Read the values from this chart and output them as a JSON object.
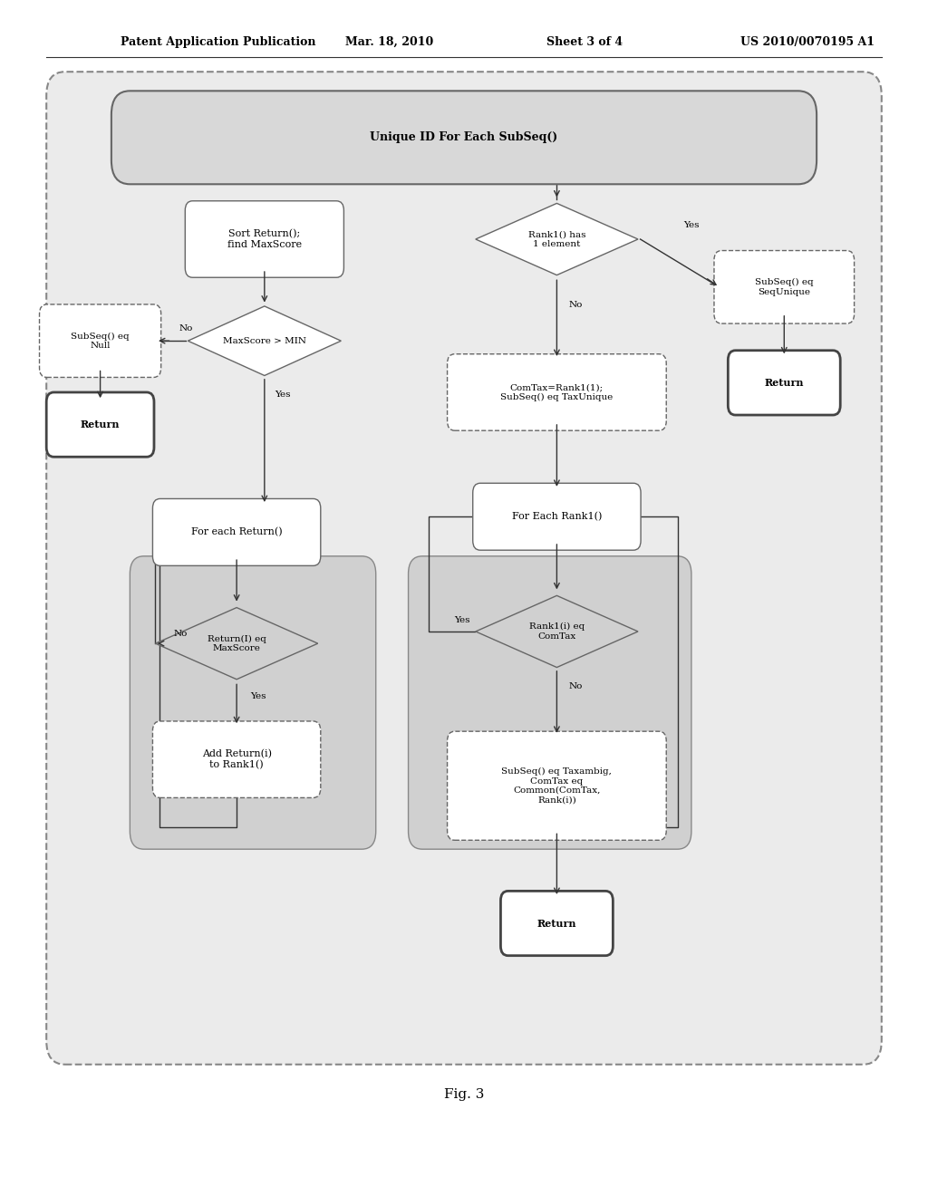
{
  "title_header": "Patent Application Publication",
  "date_header": "Mar. 18, 2010",
  "sheet_header": "Sheet 3 of 4",
  "patent_header": "US 2010/0070195 A1",
  "fig_label": "Fig. 3",
  "main_title": "Unique ID For Each SubSeq()"
}
